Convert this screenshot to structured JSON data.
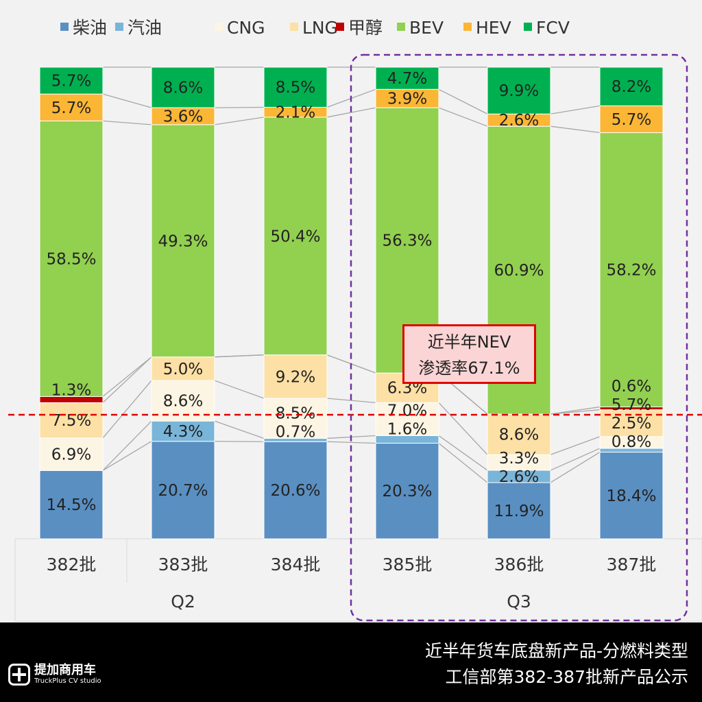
{
  "chart_data": {
    "type": "bar",
    "stacked": true,
    "normalized": true,
    "categories": [
      "382批",
      "383批",
      "384批",
      "385批",
      "386批",
      "387批"
    ],
    "groups": [
      {
        "label": "Q2",
        "categories": [
          "382批",
          "383批",
          "384批"
        ]
      },
      {
        "label": "Q3",
        "categories": [
          "385批",
          "386批",
          "387批"
        ]
      }
    ],
    "series": [
      {
        "name": "柴油",
        "color": "#5a8fc2",
        "values": [
          14.5,
          20.7,
          20.6,
          20.3,
          11.9,
          18.4
        ]
      },
      {
        "name": "汽油",
        "color": "#79b5d8",
        "values": [
          0,
          4.3,
          0.7,
          1.6,
          2.6,
          0.8
        ]
      },
      {
        "name": "CNG",
        "color": "#fdf5e3",
        "values": [
          6.9,
          8.6,
          8.5,
          7.0,
          3.3,
          2.5
        ]
      },
      {
        "name": "LNG",
        "color": "#fde0a5",
        "values": [
          7.5,
          5.0,
          9.2,
          6.3,
          8.6,
          5.7
        ]
      },
      {
        "name": "甲醇",
        "color": "#c00000",
        "values": [
          1.3,
          0,
          0,
          0,
          0,
          0.6
        ]
      },
      {
        "name": "BEV",
        "color": "#92d050",
        "values": [
          58.5,
          49.3,
          50.4,
          56.3,
          60.9,
          58.2
        ]
      },
      {
        "name": "HEV",
        "color": "#fbb635",
        "values": [
          5.7,
          3.6,
          2.1,
          3.9,
          2.6,
          5.7
        ]
      },
      {
        "name": "FCV",
        "color": "#00b050",
        "values": [
          5.7,
          8.6,
          8.5,
          4.7,
          9.9,
          8.2
        ]
      }
    ],
    "legend_position": "top",
    "annotation": {
      "line1": "近半年NEV",
      "line2": "渗透率67.1%"
    },
    "reference_line_color": "#e00000",
    "highlight_group": "Q3"
  },
  "footer": {
    "title": "近半年货车底盘新产品-分燃料类型",
    "subtitle": "工信部第382-387批新产品公示",
    "logo_cn": "提加商用车",
    "logo_en": "TruckPlus CV studio"
  }
}
